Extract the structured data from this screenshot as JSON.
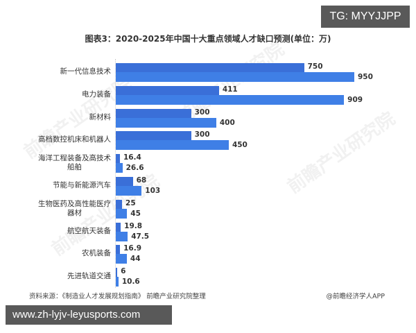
{
  "overlay": {
    "tg_badge": "TG: MYYJJPP",
    "url_badge": "www.zh-lyjv-leyusports.com"
  },
  "watermark": "前瞻产业研究院",
  "footer": {
    "source": "资料来源：《制造业人才发展规划指南》 前瞻产业研究院整理",
    "credit": "@前瞻经济学人APP"
  },
  "chart_data": {
    "type": "bar",
    "orientation": "horizontal",
    "title": "图表3：2020-2025年中国十大重点领域人才缺口预测(单位：万)",
    "xlabel": "",
    "ylabel": "",
    "unit": "万",
    "grid": false,
    "legend": null,
    "colors": [
      "#3a6fd8",
      "#3f7fe6"
    ],
    "categories": [
      "新一代信息技术",
      "电力装备",
      "新材料",
      "高档数控机床和机器人",
      "海洋工程装备及高技术船舶",
      "节能与新能源汽车",
      "生物医药及高性能医疗器材",
      "航空航天装备",
      "农机装备",
      "先进轨道交通"
    ],
    "category_lines": [
      [
        "新一代信息技术"
      ],
      [
        "电力装备"
      ],
      [
        "新材料"
      ],
      [
        "高档数控机床和机器人"
      ],
      [
        "海洋工程装备及高技术",
        "船舶"
      ],
      [
        "节能与新能源汽车"
      ],
      [
        "生物医药及高性能医疗",
        "器材"
      ],
      [
        "航空航天装备"
      ],
      [
        "农机装备"
      ],
      [
        "先进轨道交通"
      ]
    ],
    "series": [
      {
        "name": "2020",
        "values": [
          750,
          411,
          300,
          300,
          16.4,
          68,
          25,
          19.8,
          16.9,
          6
        ]
      },
      {
        "name": "2025",
        "values": [
          950,
          909,
          400,
          450,
          26.6,
          103,
          45,
          47.5,
          44,
          10.6
        ]
      }
    ],
    "value_labels": [
      [
        "750",
        "950"
      ],
      [
        "411",
        "909"
      ],
      [
        "300",
        "400"
      ],
      [
        "300",
        "450"
      ],
      [
        "16.4",
        "26.6"
      ],
      [
        "68",
        "103"
      ],
      [
        "25",
        "45"
      ],
      [
        "19.8",
        "47.5"
      ],
      [
        "16.9",
        "44"
      ],
      [
        "6",
        "10.6"
      ]
    ],
    "xlim": [
      0,
      950
    ]
  }
}
